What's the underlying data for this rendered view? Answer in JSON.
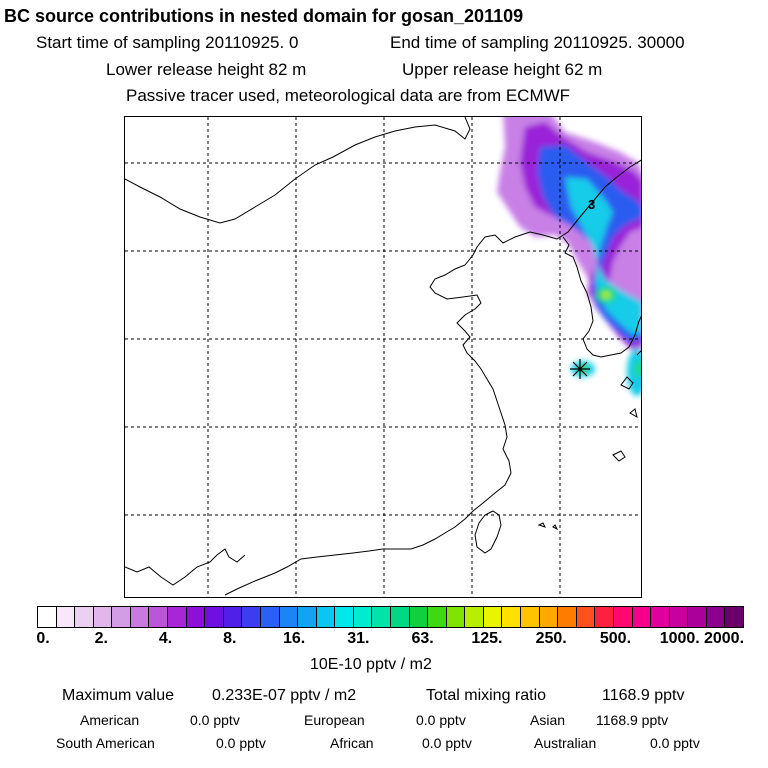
{
  "header": {
    "title": "BC  source contributions in nested domain for gosan_201109",
    "line1_start": "Start time of sampling 20110925.     0",
    "line1_end": "End time of sampling 20110925. 30000",
    "line2_lower": "Lower release height   82 m",
    "line2_upper": "Upper release height   62 m",
    "line3": "Passive tracer used, meteorological data are from ECMWF"
  },
  "map": {
    "contour_label": "3",
    "receptor_marker": "gosan-station-star"
  },
  "colorbar": {
    "colors": [
      "#ffffff",
      "#f6e8f8",
      "#ecd0f2",
      "#e2b6ec",
      "#d59ce6",
      "#c97ae0",
      "#bb56da",
      "#a726d6",
      "#8c10d8",
      "#6e10e0",
      "#5020e8",
      "#3c3cf0",
      "#2a60f4",
      "#1c84f4",
      "#12a4f2",
      "#0ac6f0",
      "#00e8ec",
      "#00eccc",
      "#00e4a8",
      "#00d884",
      "#10d040",
      "#40d810",
      "#80e400",
      "#b8ee00",
      "#e8f400",
      "#ffe000",
      "#ffc400",
      "#ffa800",
      "#ff7c00",
      "#ff5020",
      "#ff2040",
      "#ff0870",
      "#f4008c",
      "#e0009c",
      "#c800a0",
      "#ac009c",
      "#8c008c",
      "#6a0068"
    ],
    "tick_labels": [
      "0.",
      "2.",
      "4.",
      "8.",
      "16.",
      "31.",
      "63.",
      "125.",
      "250.",
      "500.",
      "1000.",
      "2000."
    ],
    "units": "10E-10 pptv / m2"
  },
  "stats": {
    "max_label": "Maximum value",
    "max_value": "0.233E-07 pptv / m2",
    "total_label": "Total mixing ratio",
    "total_value": "1168.9 pptv",
    "sources": [
      {
        "name": "American",
        "value": "0.0 pptv"
      },
      {
        "name": "European",
        "value": "0.0 pptv"
      },
      {
        "name": "Asian",
        "value": "1168.9 pptv"
      },
      {
        "name": "South American",
        "value": "0.0 pptv"
      },
      {
        "name": "African",
        "value": "0.0 pptv"
      },
      {
        "name": "Australian",
        "value": "0.0 pptv"
      }
    ]
  }
}
